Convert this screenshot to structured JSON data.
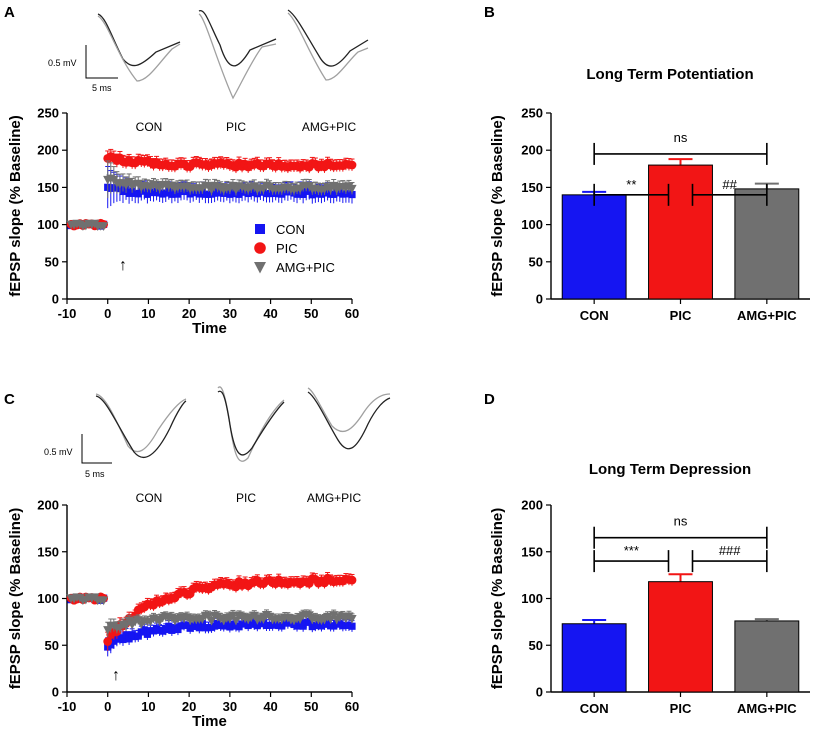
{
  "figure": {
    "panel_labels": [
      "A",
      "B",
      "C",
      "D"
    ],
    "series_colors": {
      "CON": "#1515f2",
      "PIC": "#f21515",
      "AMG+PIC": "#707070"
    },
    "trace_colors": {
      "dark": "#222222",
      "light": "#a0a0a0"
    }
  },
  "chart_data": [
    {
      "panel": "A",
      "type": "scatter",
      "title": "",
      "xlabel": "Time",
      "ylabel": "fEPSP slope (% Baseline)",
      "xlim": [
        -10,
        60
      ],
      "ylim": [
        0,
        250
      ],
      "xticks": [
        -10,
        0,
        10,
        20,
        30,
        40,
        50,
        60
      ],
      "yticks": [
        0,
        50,
        100,
        150,
        200,
        250
      ],
      "condition_labels": [
        "CON",
        "PIC",
        "AMG+PIC"
      ],
      "scale_bar": {
        "amplitude": "0.5 mV",
        "time": "5 ms"
      },
      "stimulus_marker": "↑",
      "legend": [
        "CON",
        "PIC",
        "AMG+PIC"
      ],
      "legend_position": "center-right",
      "series": [
        {
          "name": "CON",
          "marker": "square",
          "baseline": 100,
          "jump": 152,
          "steady": 143,
          "tau": 3,
          "err": 12,
          "err_early": 28
        },
        {
          "name": "PIC",
          "marker": "circle",
          "baseline": 100,
          "jump": 190,
          "steady": 180,
          "tau": 8,
          "err": 8,
          "err_early": 10
        },
        {
          "name": "AMG+PIC",
          "marker": "triangle-down",
          "baseline": 100,
          "jump": 162,
          "steady": 150,
          "tau": 6,
          "err": 8,
          "err_early": 25
        }
      ]
    },
    {
      "panel": "B",
      "type": "bar",
      "title": "Long Term Potentiation",
      "xlabel": "",
      "ylabel": "fEPSP slope (% Baseline)",
      "ylim": [
        0,
        250
      ],
      "yticks": [
        0,
        50,
        100,
        150,
        200,
        250
      ],
      "categories": [
        "CON",
        "PIC",
        "AMG+PIC"
      ],
      "values": [
        140,
        180,
        148
      ],
      "errors": [
        4,
        8,
        7
      ],
      "significance": [
        {
          "from": 0,
          "to": 1,
          "label": "**",
          "level": 140
        },
        {
          "from": 1,
          "to": 2,
          "label": "##",
          "level": 140
        },
        {
          "from": 0,
          "to": 2,
          "label": "ns",
          "level": 195
        }
      ]
    },
    {
      "panel": "C",
      "type": "scatter",
      "title": "",
      "xlabel": "Time",
      "ylabel": "fEPSP slope (% Baseline)",
      "xlim": [
        -10,
        60
      ],
      "ylim": [
        0,
        200
      ],
      "xticks": [
        -10,
        0,
        10,
        20,
        30,
        40,
        50,
        60
      ],
      "yticks": [
        0,
        50,
        100,
        150,
        200
      ],
      "condition_labels": [
        "CON",
        "PIC",
        "AMG+PIC"
      ],
      "scale_bar": {
        "amplitude": "0.5 mV",
        "time": "5 ms"
      },
      "stimulus_marker": "↑",
      "legend": [],
      "legend_position": "none",
      "series": [
        {
          "name": "CON",
          "marker": "square",
          "baseline": 100,
          "jump": 50,
          "steady": 73,
          "tau": 10,
          "err": 6,
          "err_early": 10
        },
        {
          "name": "PIC",
          "marker": "circle",
          "baseline": 100,
          "jump": 55,
          "steady": 120,
          "tau": 12,
          "err": 6,
          "err_early": 10
        },
        {
          "name": "AMG+PIC",
          "marker": "triangle-down",
          "baseline": 100,
          "jump": 68,
          "steady": 80,
          "tau": 8,
          "err": 5,
          "err_early": 8
        }
      ]
    },
    {
      "panel": "D",
      "type": "bar",
      "title": "Long Term Depression",
      "xlabel": "",
      "ylabel": "fEPSP slope (% Baseline)",
      "ylim": [
        0,
        200
      ],
      "yticks": [
        0,
        50,
        100,
        150,
        200
      ],
      "categories": [
        "CON",
        "PIC",
        "AMG+PIC"
      ],
      "values": [
        73,
        118,
        76
      ],
      "errors": [
        4,
        8,
        2
      ],
      "significance": [
        {
          "from": 0,
          "to": 1,
          "label": "***",
          "level": 140
        },
        {
          "from": 1,
          "to": 2,
          "label": "###",
          "level": 140
        },
        {
          "from": 0,
          "to": 2,
          "label": "ns",
          "level": 165
        }
      ]
    }
  ]
}
